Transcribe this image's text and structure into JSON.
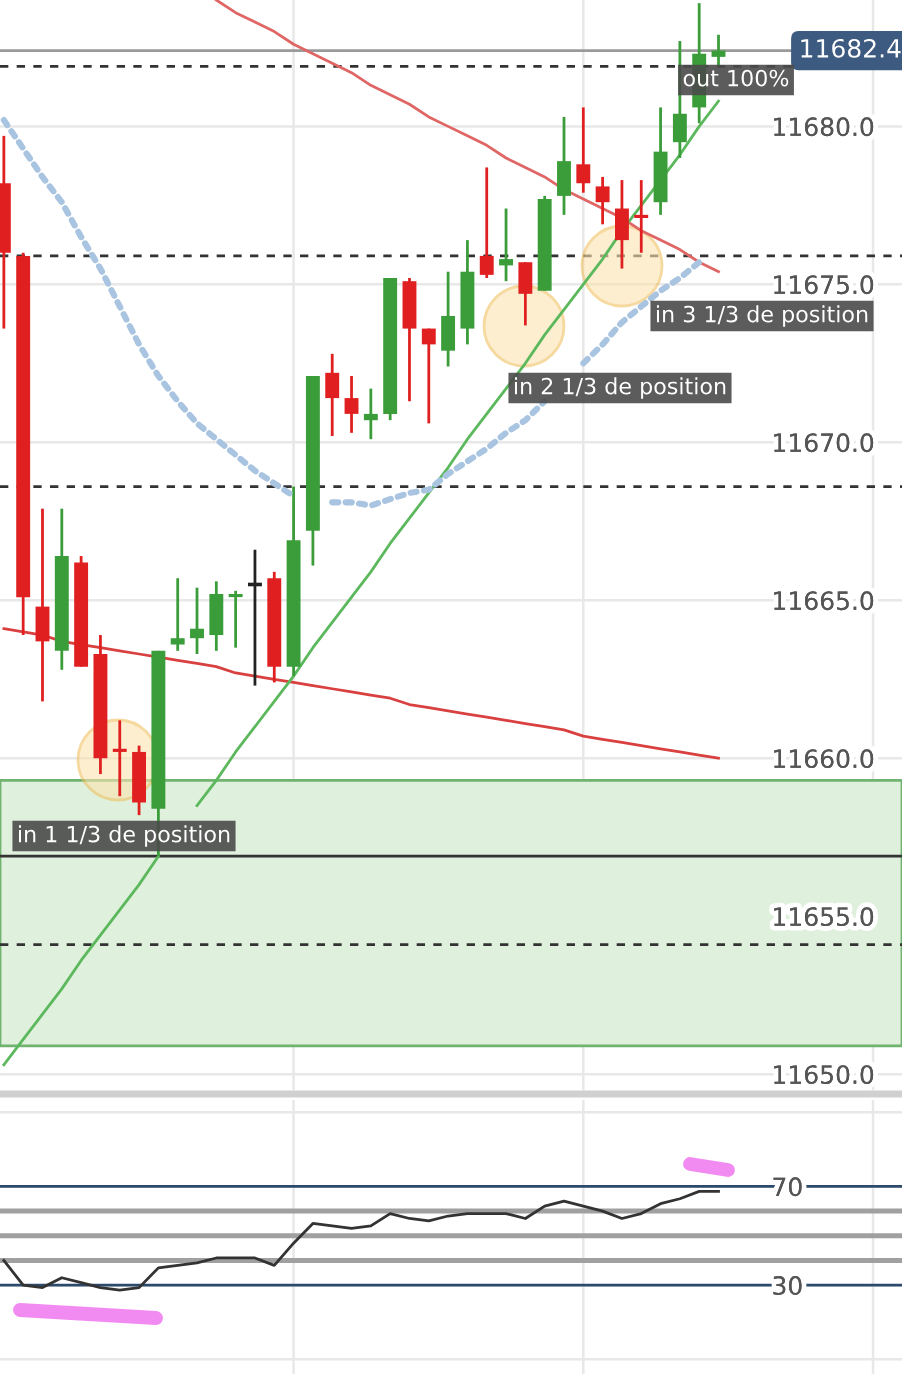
{
  "chart_data": [
    {
      "type": "candlestick",
      "categories": [
        null,
        null,
        null,
        null,
        null,
        null,
        null,
        null,
        null,
        null,
        null,
        null,
        null,
        null,
        null,
        null,
        null,
        null,
        null,
        null,
        null,
        null,
        null,
        null,
        null,
        null,
        null,
        null,
        null,
        null,
        null,
        null,
        null,
        null,
        null,
        null,
        null,
        null
      ],
      "ohlc": [
        [
          11678.2,
          11679.7,
          11673.6,
          11676.0
        ],
        [
          11675.9,
          11676.0,
          11663.9,
          11665.1
        ],
        [
          11664.8,
          11667.9,
          11661.8,
          11663.7
        ],
        [
          11663.4,
          11667.9,
          11662.8,
          11666.4
        ],
        [
          11666.2,
          11666.4,
          11662.9,
          11662.9
        ],
        [
          11663.3,
          11663.9,
          11659.5,
          11660.0
        ],
        [
          11660.3,
          11661.2,
          11658.8,
          11660.2
        ],
        [
          11660.2,
          11660.4,
          11658.2,
          11658.6
        ],
        [
          11658.4,
          11663.4,
          11656.9,
          11663.4
        ],
        [
          11663.6,
          11665.7,
          11663.4,
          11663.8
        ],
        [
          11663.8,
          11665.4,
          11663.3,
          11664.1
        ],
        [
          11663.9,
          11665.6,
          11663.4,
          11665.2
        ],
        [
          11665.1,
          11665.3,
          11663.5,
          11665.2
        ],
        [
          11665.5,
          11666.6,
          11662.3,
          11665.5
        ],
        [
          11665.7,
          11665.9,
          11662.4,
          11662.9
        ],
        [
          11662.9,
          11668.6,
          11662.6,
          11666.9
        ],
        [
          11667.2,
          11672.1,
          11666.1,
          11672.1
        ],
        [
          11672.2,
          11672.8,
          11670.2,
          11671.4
        ],
        [
          11671.4,
          11672.1,
          11670.3,
          11670.9
        ],
        [
          11670.7,
          11671.7,
          11670.1,
          11670.9
        ],
        [
          11670.9,
          11675.2,
          11670.7,
          11675.2
        ],
        [
          11675.1,
          11675.2,
          11671.3,
          11673.6
        ],
        [
          11673.6,
          11673.6,
          11670.6,
          11673.1
        ],
        [
          11672.9,
          11675.4,
          11672.4,
          11674.0
        ],
        [
          11673.6,
          11676.4,
          11673.1,
          11675.4
        ],
        [
          11675.9,
          11678.7,
          11675.2,
          11675.3
        ],
        [
          11675.6,
          11677.4,
          11675.1,
          11675.8
        ],
        [
          11675.7,
          11675.7,
          11673.7,
          11674.7
        ],
        [
          11674.8,
          11677.8,
          11674.8,
          11677.7
        ],
        [
          11677.8,
          11680.3,
          11677.2,
          11678.9
        ],
        [
          11678.8,
          11680.6,
          11677.9,
          11678.2
        ],
        [
          11678.1,
          11678.4,
          11676.9,
          11677.6
        ],
        [
          11677.4,
          11678.3,
          11675.5,
          11676.4
        ],
        [
          11677.2,
          11678.3,
          11676.0,
          11677.1
        ],
        [
          11677.6,
          11680.6,
          11677.2,
          11679.2
        ],
        [
          11679.5,
          11682.7,
          11679.0,
          11680.4
        ],
        [
          11680.6,
          11683.9,
          11680.1,
          11682.3
        ],
        [
          11682.2,
          11682.9,
          11681.9,
          11682.4
        ]
      ],
      "colors": [
        "#e02020",
        "#e02020",
        "#e02020",
        "#3a9d3a",
        "#e02020",
        "#e02020",
        "#e02020",
        "#e02020",
        "#3a9d3a",
        "#3a9d3a",
        "#3a9d3a",
        "#3a9d3a",
        "#3a9d3a",
        "#222222",
        "#e02020",
        "#3a9d3a",
        "#3a9d3a",
        "#e02020",
        "#e02020",
        "#3a9d3a",
        "#3a9d3a",
        "#e02020",
        "#e02020",
        "#3a9d3a",
        "#3a9d3a",
        "#e02020",
        "#3a9d3a",
        "#e02020",
        "#3a9d3a",
        "#3a9d3a",
        "#e02020",
        "#e02020",
        "#e02020",
        "#e02020",
        "#3a9d3a",
        "#3a9d3a",
        "#3a9d3a",
        "#3a9d3a"
      ],
      "series": [
        {
          "type": "line",
          "color": "#e06666",
          "values": [
            null,
            null,
            null,
            null,
            null,
            null,
            null,
            null,
            null,
            null,
            null,
            11684.0,
            11683.6,
            11683.3,
            11683.0,
            11682.6,
            11682.3,
            11682.0,
            11681.7,
            11681.3,
            11681.0,
            11680.7,
            11680.3,
            11680.0,
            11679.7,
            11679.4,
            11679.0,
            11678.7,
            11678.4,
            11678.0,
            11677.7,
            11677.4,
            11677.1,
            11676.7,
            11676.4,
            11676.1,
            11675.7,
            11675.4
          ]
        },
        {
          "type": "line",
          "color": "#d94040",
          "values": [
            11664.1,
            11664.0,
            11663.9,
            11663.7,
            11663.6,
            11663.5,
            11663.4,
            11663.3,
            11663.2,
            11663.1,
            11663.0,
            11662.9,
            11662.7,
            11662.6,
            11662.5,
            11662.4,
            11662.3,
            11662.2,
            11662.1,
            11662.0,
            11661.9,
            11661.7,
            11661.6,
            11661.5,
            11661.4,
            11661.3,
            11661.2,
            11661.1,
            11661.0,
            11660.9,
            11660.7,
            11660.6,
            11660.5,
            11660.4,
            11660.3,
            11660.2,
            11660.1,
            11660.0
          ]
        },
        {
          "type": "line",
          "color": "#5cb85c",
          "values": [
            11650.3,
            11651.1,
            11651.9,
            11652.7,
            11653.6,
            11654.4,
            11655.2,
            11656.0,
            11656.9,
            null,
            11658.5,
            11659.3,
            11660.2,
            11661.0,
            11661.8,
            11662.6,
            11663.5,
            11664.3,
            11665.1,
            11665.9,
            11666.8,
            11667.6,
            11668.4,
            11669.2,
            11670.1,
            11670.9,
            11671.7,
            11672.5,
            11673.4,
            11674.2,
            11675.0,
            11675.8,
            11676.7,
            11677.5,
            11678.3,
            11679.1,
            11680.0,
            11680.8
          ]
        },
        {
          "type": "line",
          "color": "#a8c4e0",
          "line_style": "dotted",
          "values": [
            11680.2,
            11679.3,
            11678.4,
            11677.6,
            11676.5,
            11675.5,
            11674.3,
            11673.1,
            11672.1,
            11671.3,
            11670.6,
            11670.1,
            11669.6,
            11669.1,
            11668.7,
            11668.3,
            null,
            11668.1,
            11668.1,
            11668.0,
            11668.2,
            11668.4,
            11668.5,
            11669.0,
            11669.4,
            11669.8,
            11670.3,
            11670.7,
            11671.3,
            null,
            11672.5,
            11673.1,
            11673.8,
            11674.3,
            11674.8,
            11675.2,
            11675.7,
            null
          ]
        }
      ],
      "ylim": [
        11649.5,
        11684.0
      ],
      "yticks": [
        {
          "value": 11650,
          "label": "11650.0"
        },
        {
          "value": 11655,
          "label": "11655.0"
        },
        {
          "value": 11660,
          "label": "11660.0"
        },
        {
          "value": 11665,
          "label": "11665.0"
        },
        {
          "value": 11670,
          "label": "11670.0"
        },
        {
          "value": 11675,
          "label": "11675.0"
        },
        {
          "value": 11680,
          "label": "11680.0"
        }
      ],
      "grid": true,
      "tick_labels": "y",
      "ref_lines": [
        {
          "axis": "y",
          "value": 11682.4,
          "label": "11682.4",
          "color": "#9a9a9a",
          "line_style": "solid"
        },
        {
          "axis": "y",
          "value": 11681.9,
          "color": "#333333",
          "line_style": "dashed"
        },
        {
          "axis": "y",
          "value": 11675.9,
          "color": "#333333",
          "line_style": "dashed"
        },
        {
          "axis": "y",
          "value": 11668.6,
          "color": "#333333",
          "line_style": "dashed"
        },
        {
          "axis": "y",
          "value": 11654.1,
          "color": "#333333",
          "line_style": "dashed"
        },
        {
          "axis": "y",
          "value": 11656.9,
          "color": "#333333",
          "line_style": "solid"
        }
      ],
      "bands": [
        {
          "axis": "y",
          "from": 11650.9,
          "to": 11659.3,
          "color": "#dff0dc"
        }
      ],
      "annotations": [
        "in 1 1/3 de position",
        "in 2 1/3 de position",
        "in 3 1/3 de position",
        "out 100%"
      ]
    },
    {
      "type": "line",
      "categories": [
        null,
        null,
        null,
        null,
        null,
        null,
        null,
        null,
        null,
        null,
        null,
        null,
        null,
        null,
        null,
        null,
        null,
        null,
        null,
        null,
        null,
        null,
        null,
        null,
        null,
        null,
        null,
        null,
        null,
        null,
        null,
        null,
        null,
        null,
        null,
        null,
        null,
        null
      ],
      "series": [
        {
          "color": "#333333",
          "values": [
            40,
            30,
            29,
            33,
            31,
            29,
            28,
            29,
            37,
            38,
            39,
            41,
            41,
            41,
            38,
            47,
            55,
            54,
            53,
            54,
            59,
            57,
            56,
            58,
            59,
            59,
            59,
            57,
            62,
            64,
            62,
            60,
            57,
            59,
            63,
            65,
            68,
            68
          ]
        }
      ],
      "ylim": [
        -6,
        105
      ],
      "yticks": [
        {
          "value": 0,
          "label": null
        },
        30,
        70,
        {
          "value": 100,
          "label": null
        }
      ],
      "grid": true,
      "tick_labels": "y",
      "ref_lines": [
        {
          "axis": "y",
          "value": 70,
          "color": "#2c4a6b",
          "line_style": "solid"
        },
        {
          "axis": "y",
          "value": 60,
          "color": "#a0a0a0",
          "line_style": "solid"
        },
        {
          "axis": "y",
          "value": 50,
          "color": "#a0a0a0",
          "line_style": "solid"
        },
        {
          "axis": "y",
          "value": 40,
          "color": "#a0a0a0",
          "line_style": "solid"
        },
        {
          "axis": "y",
          "value": 30,
          "color": "#2c4a6b",
          "line_style": "solid"
        }
      ]
    }
  ]
}
